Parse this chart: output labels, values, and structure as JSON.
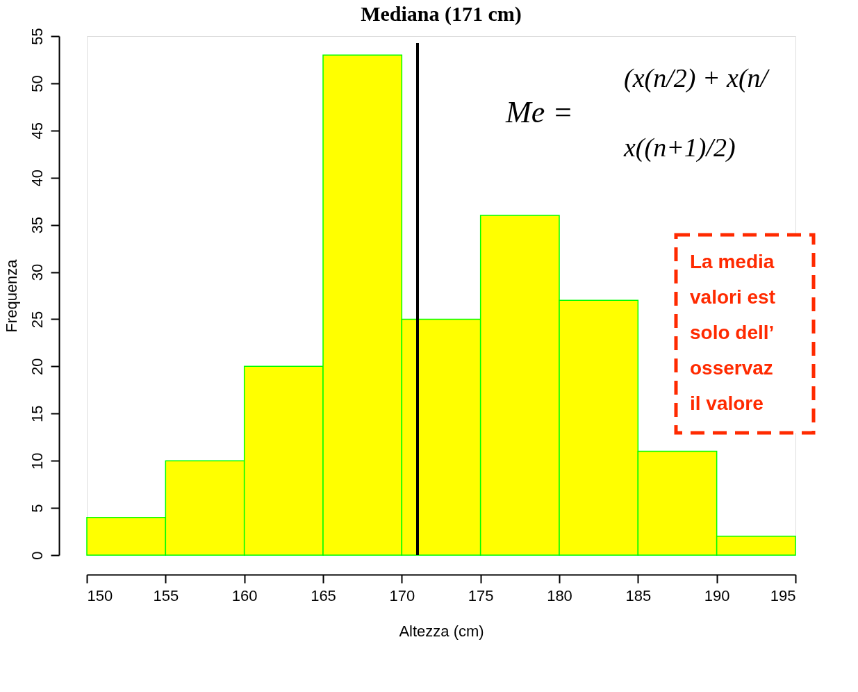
{
  "chart_data": {
    "type": "histogram",
    "title": "Mediana (171 cm)",
    "xlabel": "Altezza (cm)",
    "ylabel": "Frequenza",
    "bins": [
      150,
      155,
      160,
      165,
      170,
      175,
      180,
      185,
      190,
      195
    ],
    "values": [
      4,
      10,
      20,
      53,
      25,
      36,
      27,
      11,
      2
    ],
    "color": "#ffff00",
    "xlim": [
      150,
      195
    ],
    "xticks": [
      150,
      155,
      160,
      165,
      170,
      175,
      180,
      185,
      190,
      195
    ],
    "ylim": [
      0,
      55
    ],
    "yticks": [
      0,
      5,
      10,
      15,
      20,
      25,
      30,
      35,
      40,
      45,
      50,
      55
    ],
    "grid": false,
    "ref_lines": [
      {
        "axis": "x",
        "value": 171,
        "color": "#000000"
      }
    ],
    "annotations": [
      "Me =",
      "(x(n/2) + x(n/",
      "x((n+1)/2)",
      "La media",
      "valori est",
      "solo dell’",
      "osservaz",
      "il  valore"
    ]
  }
}
